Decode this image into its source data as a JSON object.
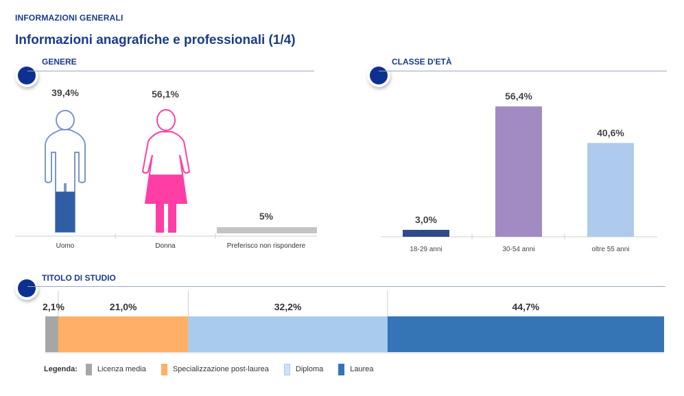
{
  "header": {
    "section_label": "INFORMAZIONI GENERALI",
    "title": "Informazioni anagrafiche e professionali (1/4)"
  },
  "colors": {
    "brand_blue": "#1a3a8a",
    "bullet": "#0d2f8f",
    "rule": "#9aa8be",
    "male": "#2e5fa6",
    "male_outline": "#7b96c9",
    "female": "#ff3ea5",
    "no_answer": "#c4c4c4"
  },
  "chart_data": [
    {
      "type": "bar",
      "title": "GENERE",
      "categories": [
        "Uomo",
        "Donna",
        "Preferisco non rispondere"
      ],
      "values": [
        39.4,
        56.1,
        5
      ],
      "value_labels": [
        "39,4%",
        "56,1%",
        "5%"
      ],
      "icons": [
        "male-figure-icon",
        "female-figure-icon",
        ""
      ],
      "unit": "%",
      "ylim": [
        0,
        100
      ]
    },
    {
      "type": "bar",
      "title": "CLASSE D'ETÀ",
      "categories": [
        "18-29 anni",
        "30-54 anni",
        "oltre 55 anni"
      ],
      "values": [
        3.0,
        56.4,
        40.6
      ],
      "value_labels": [
        "3,0%",
        "56,4%",
        "40,6%"
      ],
      "colors": [
        "#2f4a8a",
        "#a18bc2",
        "#aecbee"
      ],
      "unit": "%",
      "ylim": [
        0,
        60
      ]
    },
    {
      "type": "bar",
      "orientation": "stacked-horizontal",
      "title": "TITOLO DI STUDIO",
      "categories": [
        "Licenza media",
        "Specializzazione post-laurea",
        "Diploma",
        "Laurea"
      ],
      "values": [
        2.1,
        21.0,
        32.2,
        44.7
      ],
      "value_labels": [
        "2,1%",
        "21,0%",
        "32,2%",
        "44,7%"
      ],
      "colors": [
        "#a6a6a6",
        "#ffb066",
        "#a9cbee",
        "#3575b5"
      ],
      "unit": "%",
      "legend_title": "Legenda:",
      "legend_position": "bottom"
    }
  ]
}
